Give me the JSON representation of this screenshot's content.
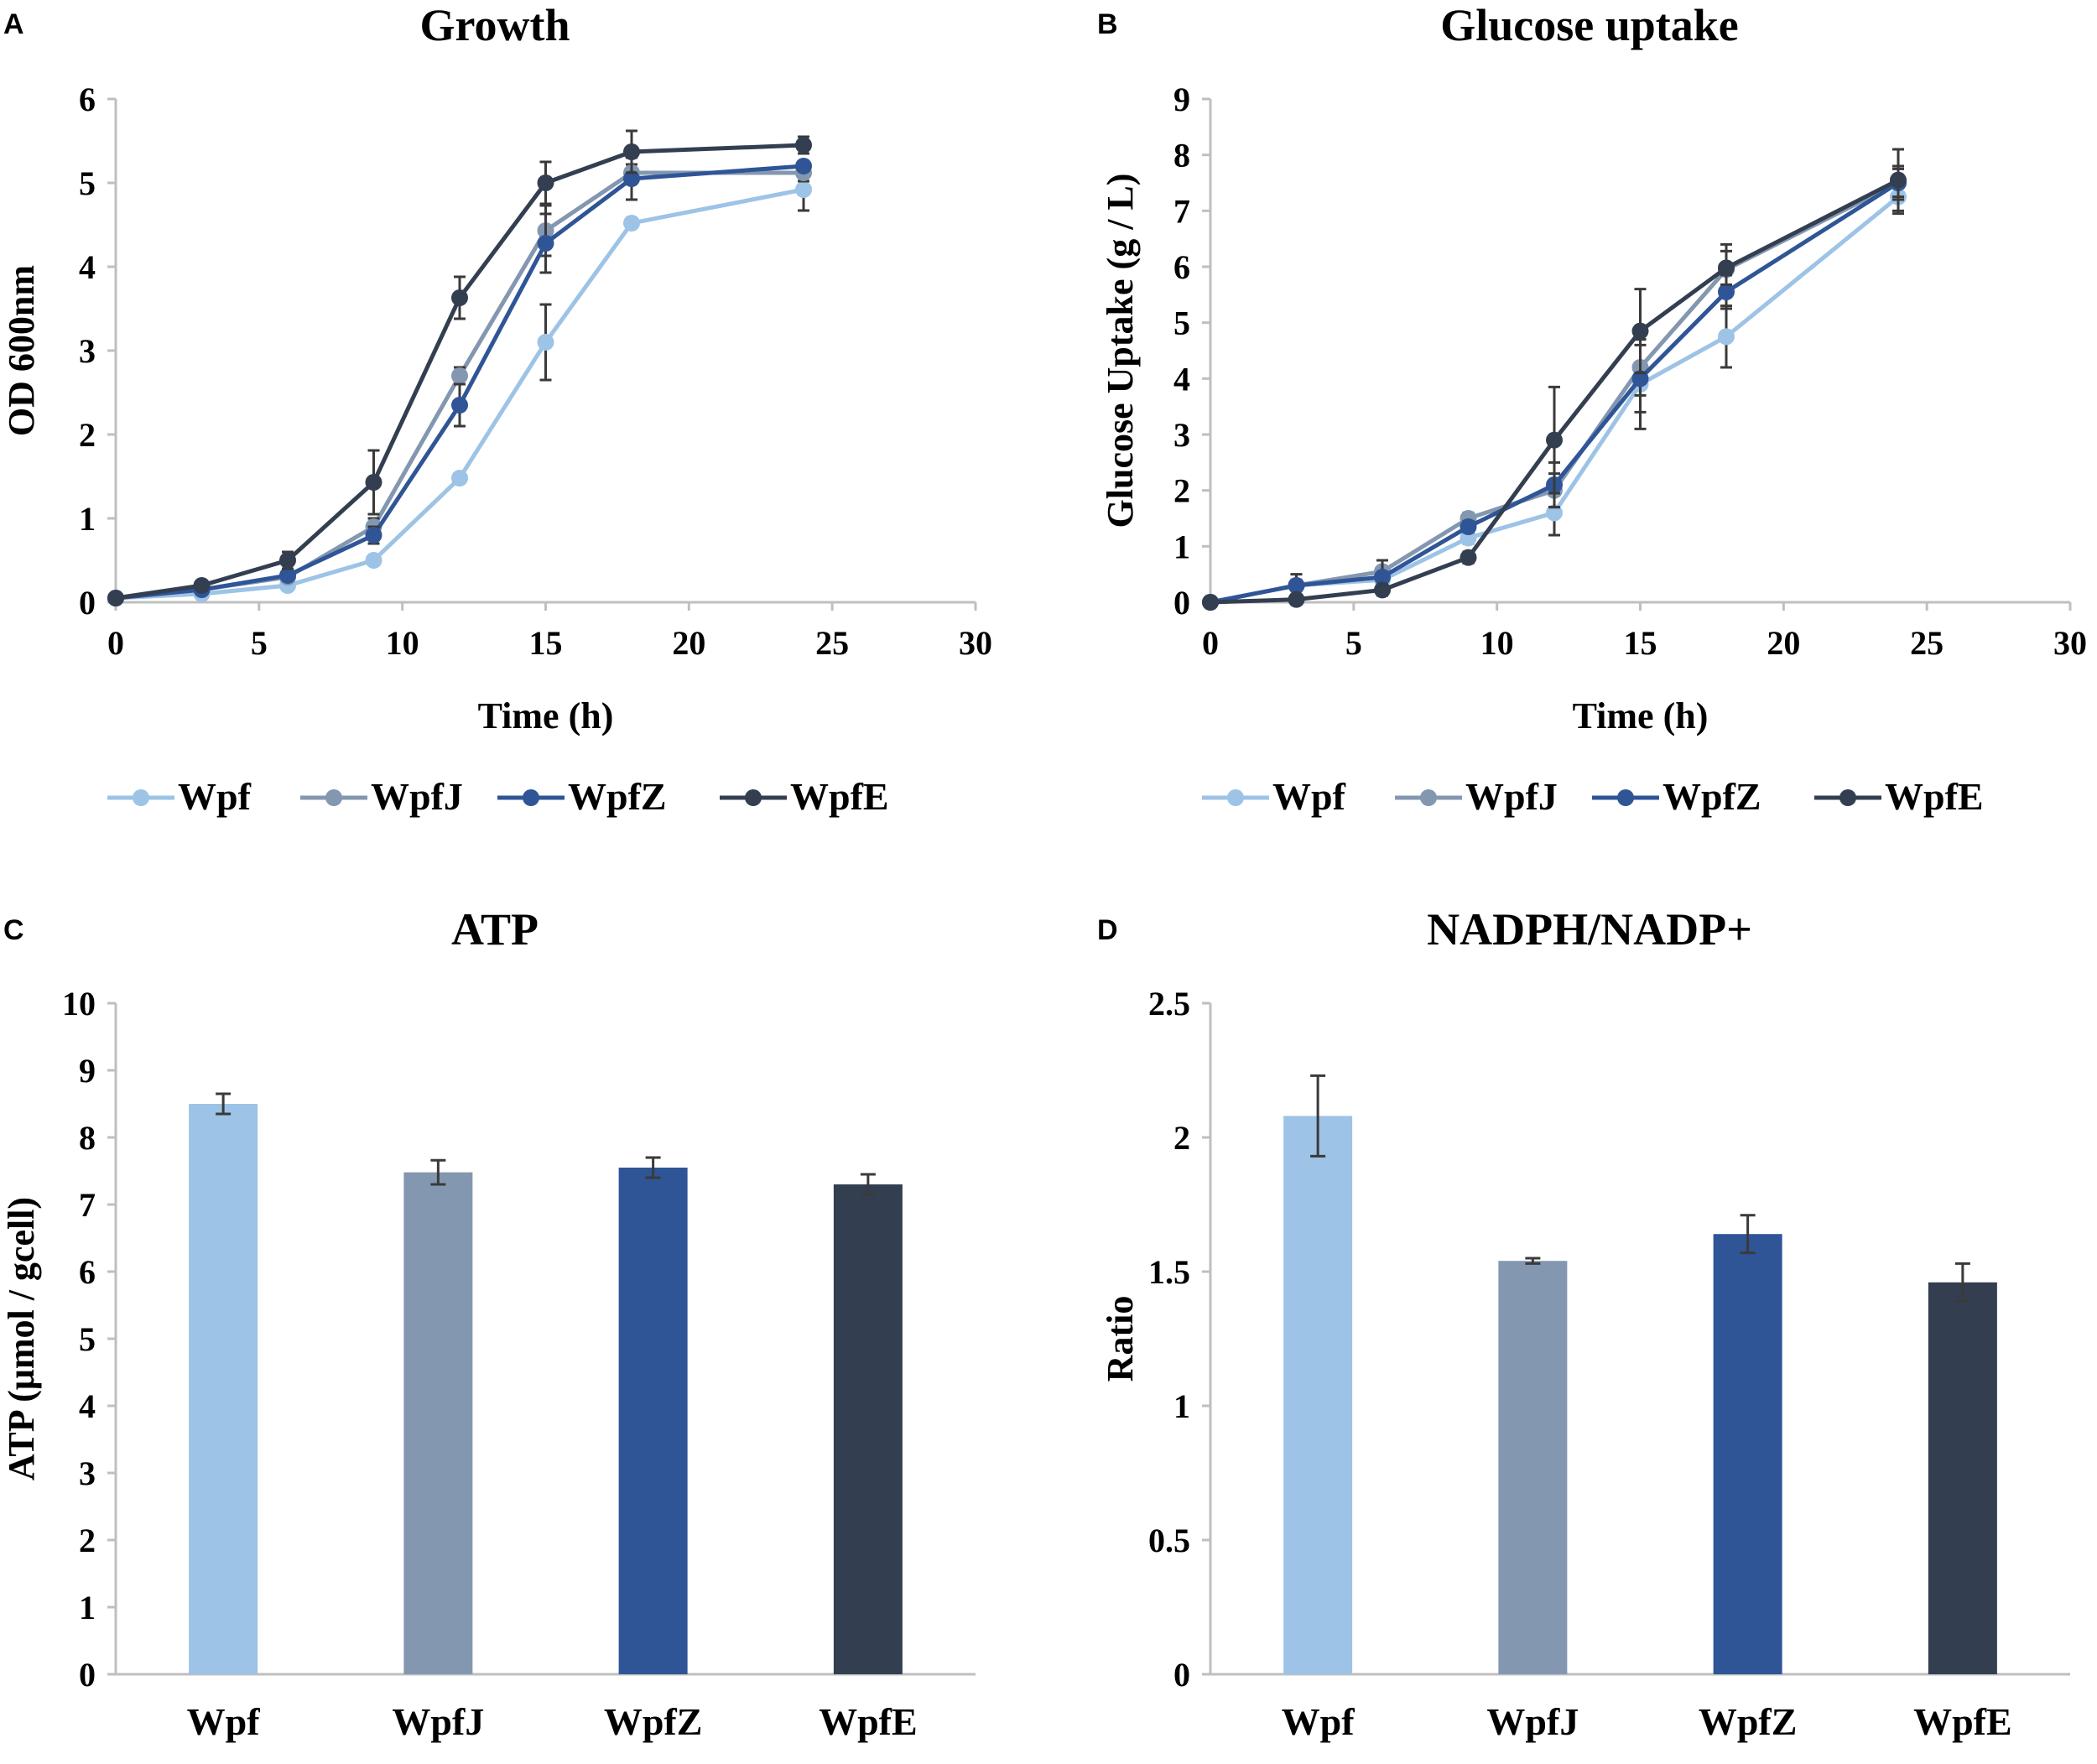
{
  "chart_data": [
    {
      "panel": "A",
      "type": "line",
      "title": "Growth",
      "xlabel": "Time (h)",
      "ylabel": "OD 600nm",
      "xlim": [
        0,
        30
      ],
      "ylim": [
        0,
        6
      ],
      "xticks": [
        0,
        5,
        10,
        15,
        20,
        25,
        30
      ],
      "yticks": [
        0,
        1,
        2,
        3,
        4,
        5,
        6
      ],
      "legend_position": "bottom",
      "series": [
        {
          "name": "Wpf",
          "color": "#9dc3e6",
          "x": [
            0,
            3,
            6,
            9,
            12,
            15,
            18,
            24
          ],
          "values": [
            0.05,
            0.1,
            0.2,
            0.5,
            1.48,
            3.1,
            4.52,
            4.92
          ],
          "errors": [
            0.01,
            0.02,
            0.03,
            0.05,
            0.05,
            0.45,
            0.06,
            0.25
          ]
        },
        {
          "name": "WpfJ",
          "color": "#8497b0",
          "x": [
            0,
            3,
            6,
            9,
            12,
            15,
            18,
            24
          ],
          "values": [
            0.05,
            0.15,
            0.3,
            0.9,
            2.7,
            4.43,
            5.12,
            5.12
          ],
          "errors": [
            0.01,
            0.02,
            0.05,
            0.1,
            0.1,
            0.3,
            0.1,
            0.1
          ]
        },
        {
          "name": "WpfZ",
          "color": "#2f5597",
          "x": [
            0,
            3,
            6,
            9,
            12,
            15,
            18,
            24
          ],
          "values": [
            0.05,
            0.15,
            0.32,
            0.8,
            2.35,
            4.28,
            5.05,
            5.2
          ],
          "errors": [
            0.01,
            0.02,
            0.05,
            0.1,
            0.25,
            0.35,
            0.25,
            0.05
          ]
        },
        {
          "name": "WpfE",
          "color": "#333f50",
          "x": [
            0,
            3,
            6,
            9,
            12,
            15,
            18,
            24
          ],
          "values": [
            0.05,
            0.2,
            0.5,
            1.43,
            3.63,
            5.0,
            5.37,
            5.45
          ],
          "errors": [
            0.01,
            0.03,
            0.1,
            0.38,
            0.25,
            0.25,
            0.25,
            0.1
          ]
        }
      ]
    },
    {
      "panel": "B",
      "type": "line",
      "title": "Glucose uptake",
      "xlabel": "Time (h)",
      "ylabel": "Glucose Uptake (g / L)",
      "xlim": [
        0,
        30
      ],
      "ylim": [
        0,
        9
      ],
      "xticks": [
        0,
        5,
        10,
        15,
        20,
        25,
        30
      ],
      "yticks": [
        0,
        1,
        2,
        3,
        4,
        5,
        6,
        7,
        8,
        9
      ],
      "legend_position": "bottom",
      "series": [
        {
          "name": "Wpf",
          "color": "#9dc3e6",
          "x": [
            0,
            3,
            6,
            9,
            12,
            15,
            18,
            24
          ],
          "values": [
            0,
            0.3,
            0.4,
            1.15,
            1.6,
            3.9,
            4.75,
            7.25
          ],
          "errors": [
            0,
            0.1,
            0.15,
            0.1,
            0.4,
            0.8,
            0.55,
            0.3
          ]
        },
        {
          "name": "WpfJ",
          "color": "#8497b0",
          "x": [
            0,
            3,
            6,
            9,
            12,
            15,
            18,
            24
          ],
          "values": [
            0,
            0.3,
            0.55,
            1.5,
            2.0,
            4.2,
            5.95,
            7.5
          ],
          "errors": [
            0,
            0.1,
            0.2,
            0.1,
            0.3,
            0.5,
            0.45,
            0.3
          ]
        },
        {
          "name": "WpfZ",
          "color": "#2f5597",
          "x": [
            0,
            3,
            6,
            9,
            12,
            15,
            18,
            24
          ],
          "values": [
            0,
            0.3,
            0.45,
            1.35,
            2.1,
            4.0,
            5.55,
            7.5
          ],
          "errors": [
            0,
            0.2,
            0.3,
            0.1,
            0.4,
            0.6,
            0.3,
            0.25
          ]
        },
        {
          "name": "WpfE",
          "color": "#333f50",
          "x": [
            0,
            3,
            6,
            9,
            12,
            15,
            18,
            24
          ],
          "values": [
            0,
            0.05,
            0.22,
            0.8,
            2.9,
            4.85,
            5.98,
            7.55
          ],
          "errors": [
            0,
            0.05,
            0.1,
            0.1,
            0.95,
            0.75,
            0.3,
            0.55
          ]
        }
      ]
    },
    {
      "panel": "C",
      "type": "bar",
      "title": "ATP",
      "xlabel": "",
      "ylabel": "ATP (μmol / gcell)",
      "ylim": [
        0,
        10
      ],
      "yticks": [
        "0",
        "1",
        "2",
        "3",
        "4",
        "5",
        "6",
        "7",
        "8",
        "9",
        "10"
      ],
      "categories": [
        "Wpf",
        "WpfJ",
        "WpfZ",
        "WpfE"
      ],
      "colors": [
        "#9dc3e6",
        "#8497b0",
        "#2f5597",
        "#333f50"
      ],
      "values": [
        8.5,
        7.48,
        7.55,
        7.3
      ],
      "errors": [
        0.15,
        0.18,
        0.15,
        0.15
      ]
    },
    {
      "panel": "D",
      "type": "bar",
      "title": "NADPH/NADP+",
      "xlabel": "",
      "ylabel": "Ratio",
      "ylim": [
        0,
        2.5
      ],
      "yticks": [
        "0",
        "0.5",
        "1",
        "1.5",
        "2",
        "2.5"
      ],
      "categories": [
        "Wpf",
        "WpfJ",
        "WpfZ",
        "WpfE"
      ],
      "colors": [
        "#9dc3e6",
        "#8497b0",
        "#2f5597",
        "#333f50"
      ],
      "values": [
        2.08,
        1.54,
        1.64,
        1.46
      ],
      "errors": [
        0.15,
        0.01,
        0.07,
        0.07
      ]
    }
  ]
}
